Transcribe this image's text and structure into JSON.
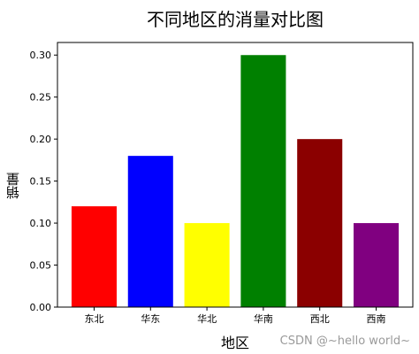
{
  "chart_data": {
    "type": "bar",
    "title": "不同地区的消量对比图",
    "xlabel": "地区",
    "ylabel": "销量",
    "categories": [
      "东北",
      "华东",
      "华北",
      "华南",
      "西北",
      "西南"
    ],
    "values": [
      0.12,
      0.18,
      0.1,
      0.3,
      0.2,
      0.1
    ],
    "colors": [
      "#ff0000",
      "#0000ff",
      "#ffff00",
      "#008000",
      "#8b0000",
      "#800080"
    ],
    "ylim": [
      0,
      0.315
    ],
    "yticks": [
      0.0,
      0.05,
      0.1,
      0.15,
      0.2,
      0.25,
      0.3
    ],
    "ytick_labels": [
      "0.00",
      "0.05",
      "0.10",
      "0.15",
      "0.20",
      "0.25",
      "0.30"
    ],
    "grid": false,
    "legend": "none"
  },
  "watermark": "CSDN @~hello world~"
}
